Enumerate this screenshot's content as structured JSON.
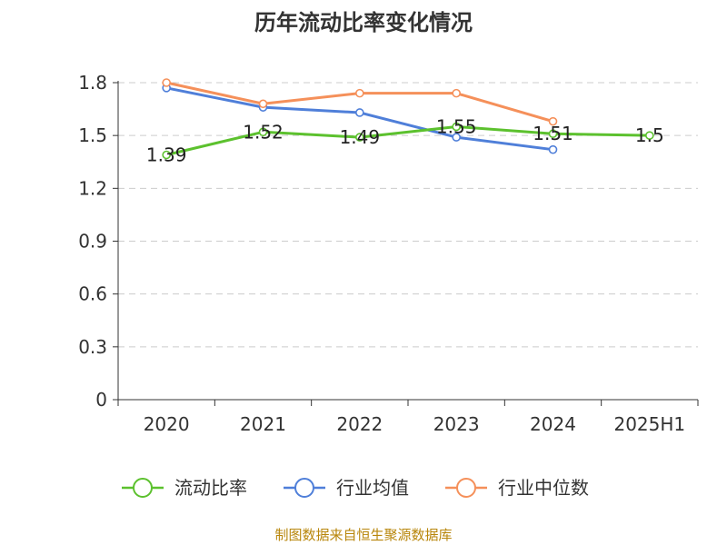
{
  "chart_data": {
    "type": "line",
    "title": "历年流动比率变化情况",
    "categories": [
      "2020",
      "2021",
      "2022",
      "2023",
      "2024",
      "2025H1"
    ],
    "yticks": [
      "0",
      "0.3",
      "0.6",
      "0.9",
      "1.2",
      "1.5",
      "1.8"
    ],
    "ylim": [
      0,
      1.8
    ],
    "grid": true,
    "legend_position": "bottom",
    "series": [
      {
        "name": "流动比率",
        "color": "#5cc12e",
        "labeled": true,
        "values": [
          1.39,
          1.52,
          1.49,
          1.55,
          1.51,
          1.5
        ],
        "labels": [
          "1.39",
          "1.52",
          "1.49",
          "1.55",
          "1.51",
          "1.5"
        ]
      },
      {
        "name": "行业均值",
        "color": "#4f7fd9",
        "labeled": false,
        "values": [
          1.77,
          1.66,
          1.63,
          1.49,
          1.42,
          null
        ]
      },
      {
        "name": "行业中位数",
        "color": "#f5905a",
        "labeled": false,
        "values": [
          1.8,
          1.68,
          1.74,
          1.74,
          1.58,
          null
        ]
      }
    ]
  },
  "footer": {
    "source": "制图数据来自恒生聚源数据库"
  }
}
